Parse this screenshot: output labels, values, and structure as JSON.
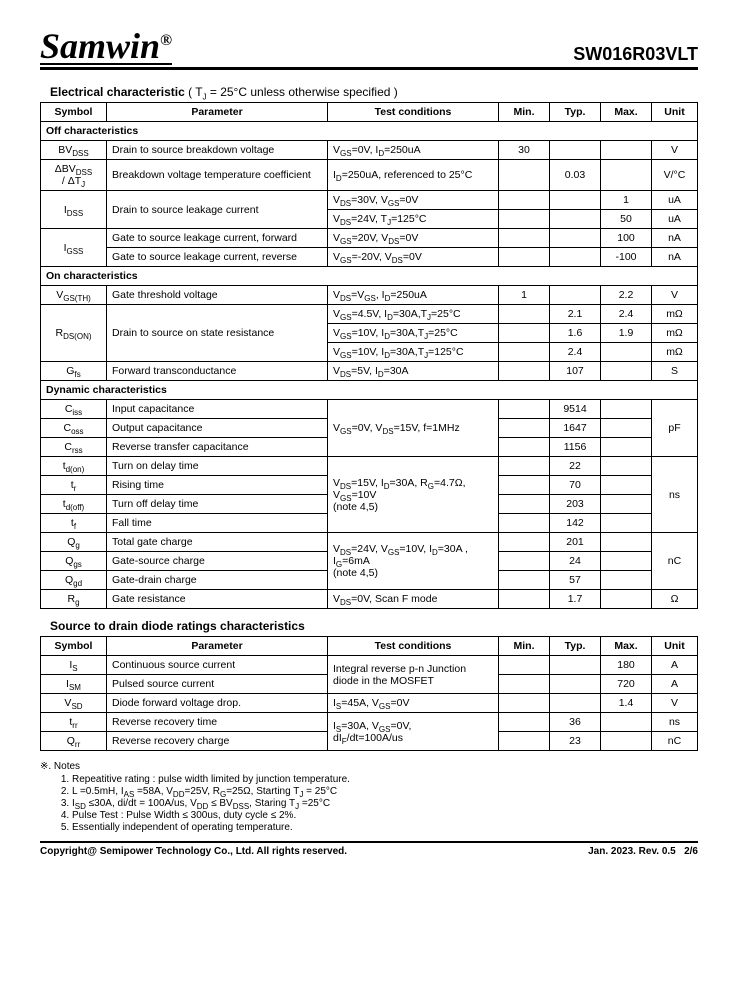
{
  "header": {
    "brand": "Samwin",
    "reg": "®",
    "partno": "SW016R03VLT"
  },
  "elec_title": "Electrical characteristic",
  "elec_cond": " ( T",
  "elec_cond_sub": "J",
  "elec_cond2": " = 25°C unless otherwise specified )",
  "cols": {
    "symbol": "Symbol",
    "param": "Parameter",
    "cond": "Test conditions",
    "min": "Min.",
    "typ": "Typ.",
    "max": "Max.",
    "unit": "Unit"
  },
  "off_title": "Off characteristics",
  "on_title": "On characteristics",
  "dyn_title": "Dynamic characteristics",
  "diode_title": "Source to drain diode ratings characteristics",
  "rows": {
    "bvdss": {
      "param": "Drain to source breakdown voltage",
      "min": "30",
      "unit": "V"
    },
    "dbvdss": {
      "param": "Breakdown voltage temperature coefficient",
      "typ": "0.03",
      "unit": "V/°C"
    },
    "idss1": {
      "param": "Drain to source leakage current",
      "max": "1",
      "unit": "uA"
    },
    "idss2": {
      "max": "50",
      "unit": "uA"
    },
    "igss1": {
      "param": "Gate to source leakage current, forward",
      "max": "100",
      "unit": "nA"
    },
    "igss2": {
      "param": "Gate to source leakage current, reverse",
      "max": "-100",
      "unit": "nA"
    },
    "vgsth": {
      "param": "Gate threshold voltage",
      "min": "1",
      "max": "2.2",
      "unit": "V"
    },
    "rdson": {
      "param": "Drain to source on state resistance"
    },
    "rdson1": {
      "typ": "2.1",
      "max": "2.4",
      "unit": "mΩ"
    },
    "rdson2": {
      "typ": "1.6",
      "max": "1.9",
      "unit": "mΩ"
    },
    "rdson3": {
      "typ": "2.4",
      "unit": "mΩ"
    },
    "gfs": {
      "param": "Forward transconductance",
      "typ": "107",
      "unit": "S"
    },
    "ciss": {
      "param": "Input capacitance",
      "typ": "9514"
    },
    "coss": {
      "param": "Output capacitance",
      "typ": "1647",
      "unit": "pF"
    },
    "crss": {
      "param": "Reverse transfer capacitance",
      "typ": "1156"
    },
    "tdon": {
      "param": "Turn on delay time",
      "typ": "22"
    },
    "tr": {
      "param": "Rising time",
      "typ": "70"
    },
    "tdoff": {
      "param": "Turn off delay time",
      "typ": "203",
      "unit": "ns"
    },
    "tf": {
      "param": "Fall time",
      "typ": "142"
    },
    "qg": {
      "param": "Total gate charge",
      "typ": "201"
    },
    "qgs": {
      "param": "Gate-source charge",
      "typ": "24",
      "unit": "nC"
    },
    "qgd": {
      "param": "Gate-drain charge",
      "typ": "57"
    },
    "rg": {
      "param": "Gate resistance",
      "typ": "1.7",
      "unit": "Ω"
    },
    "is": {
      "param": "Continuous source current",
      "max": "180",
      "unit": "A"
    },
    "ism": {
      "param": "Pulsed source current",
      "max": "720",
      "unit": "A"
    },
    "vsd": {
      "param": "Diode forward voltage drop.",
      "max": "1.4",
      "unit": "V"
    },
    "trr": {
      "param": "Reverse recovery time",
      "typ": "36",
      "unit": "ns"
    },
    "qrr": {
      "param": "Reverse recovery charge",
      "typ": "23",
      "unit": "nC"
    }
  },
  "notes_title": "※. Notes",
  "notes": {
    "n1": "Repeatitive rating : pulse width limited by junction temperature.",
    "n2_a": "L =0.5mH, I",
    "n2_b": " =58A, V",
    "n2_c": "=25V, R",
    "n2_d": "=25Ω, Starting T",
    "n2_e": " = 25°C",
    "n3_a": "I",
    "n3_b": " ≤30A, di/dt = 100A/us, V",
    "n3_c": " ≤ BV",
    "n3_d": ", Staring T",
    "n3_e": " =25°C",
    "n4": "Pulse Test : Pulse Width ≤ 300us, duty cycle ≤ 2%.",
    "n5": "Essentially independent of operating temperature."
  },
  "footer": {
    "copyright": "Copyright@ Semipower Technology Co., Ltd. All rights reserved.",
    "rev": "Jan. 2023. Rev. 0.5",
    "page": "2/6"
  }
}
